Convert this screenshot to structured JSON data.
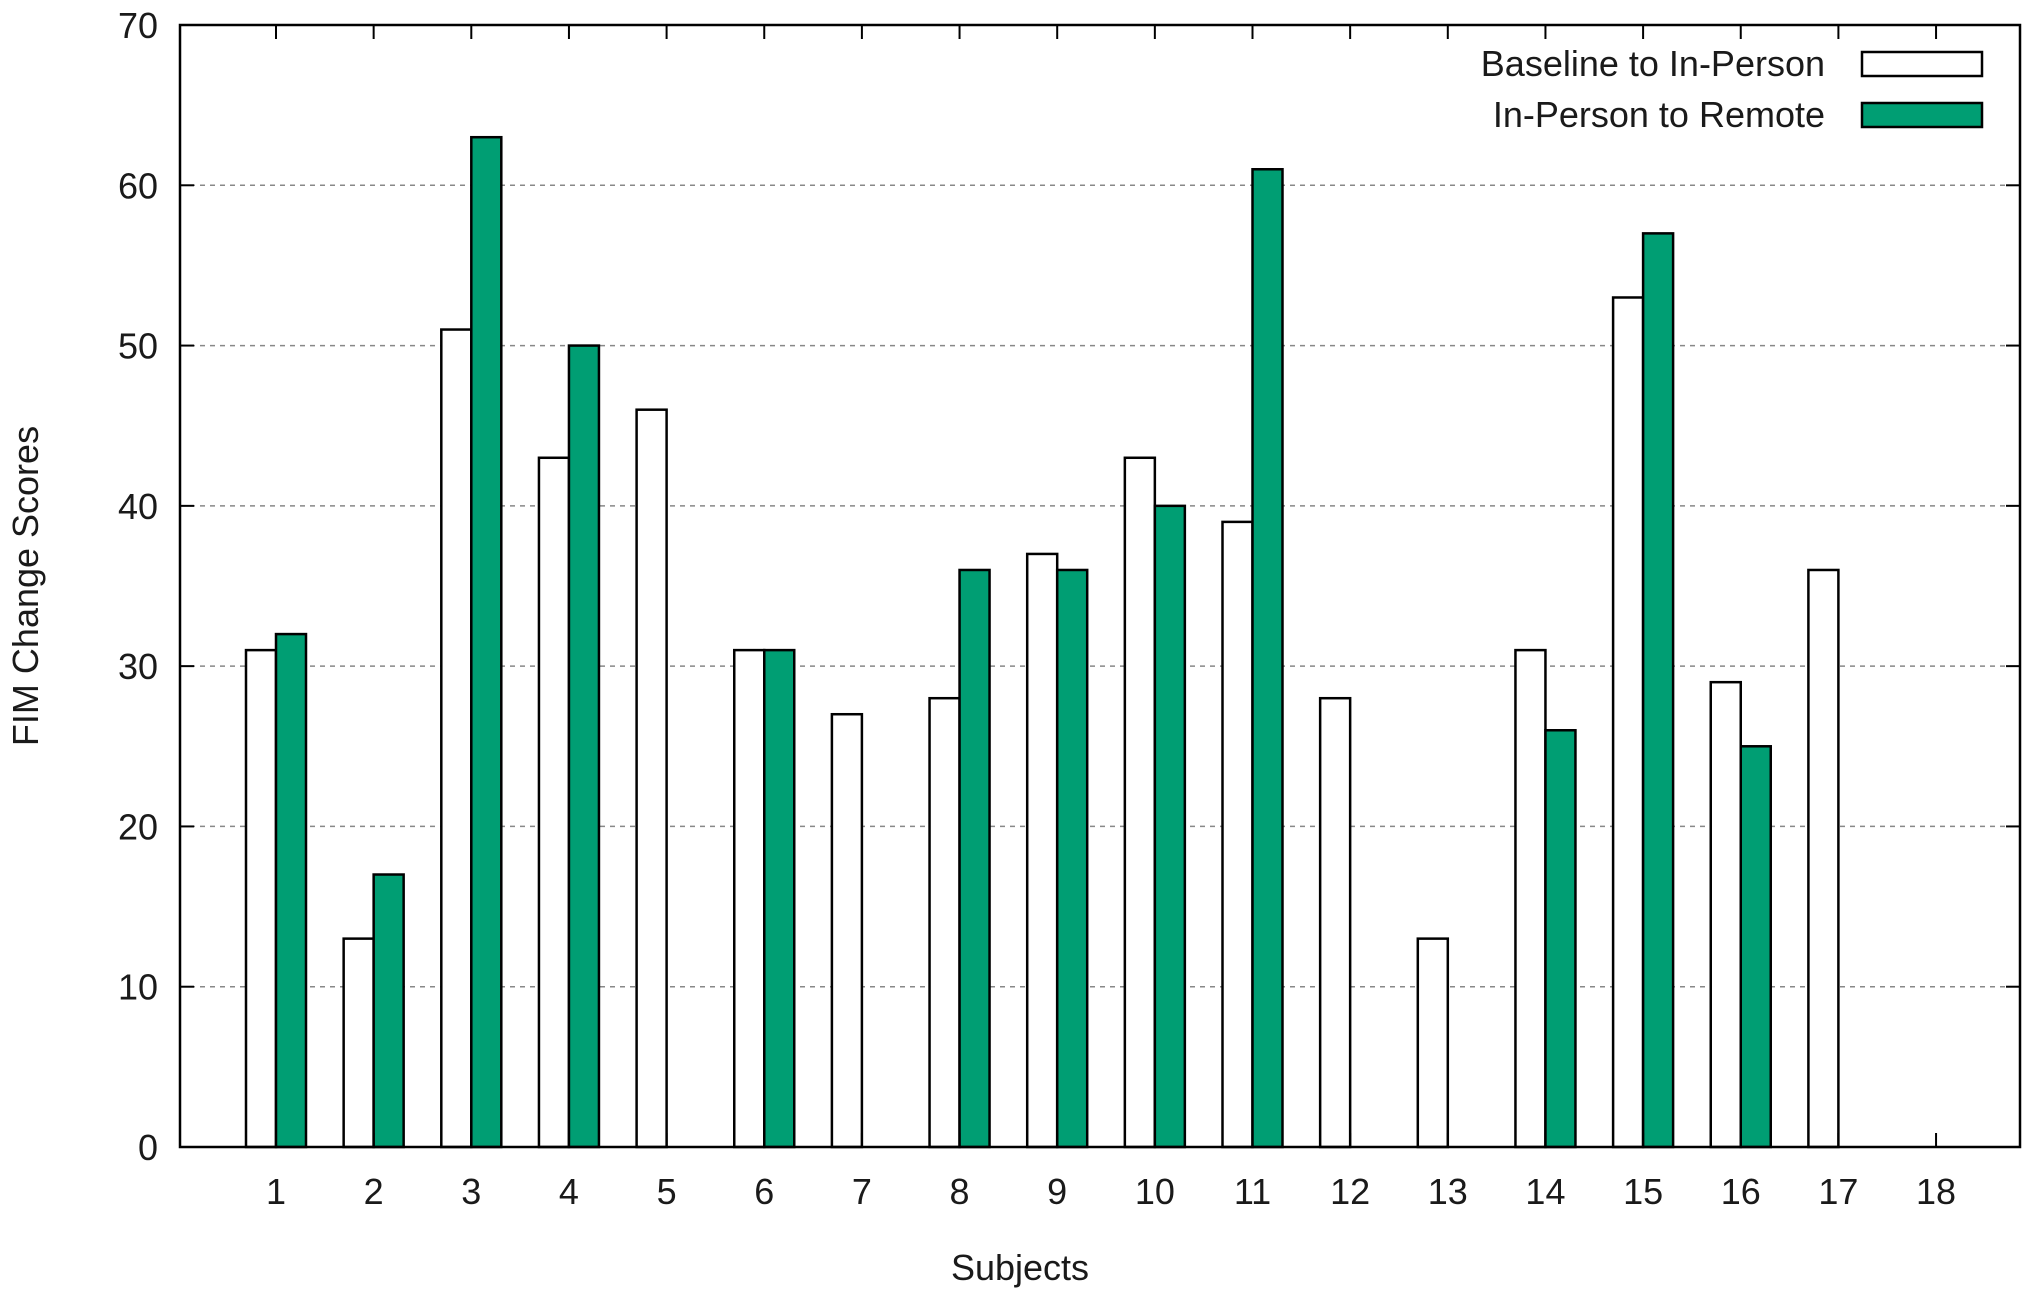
{
  "chart_data": {
    "type": "bar",
    "title": "",
    "xlabel": "Subjects",
    "ylabel": "FIM Change Scores",
    "ylim": [
      0,
      70
    ],
    "yticks": [
      0,
      10,
      20,
      30,
      40,
      50,
      60,
      70
    ],
    "grid": "horizontal dashed",
    "legend_position": "top-right",
    "categories": [
      "1",
      "2",
      "3",
      "4",
      "5",
      "6",
      "7",
      "8",
      "9",
      "10",
      "11",
      "12",
      "13",
      "14",
      "15",
      "16",
      "17",
      "18"
    ],
    "series": [
      {
        "name": "Baseline to In-Person",
        "color": "#ffffff",
        "values": [
          31,
          13,
          51,
          43,
          46,
          31,
          27,
          28,
          37,
          43,
          39,
          28,
          13,
          31,
          53,
          29,
          36,
          0
        ]
      },
      {
        "name": "In-Person to Remote",
        "color": "#009e73",
        "values": [
          32,
          17,
          63,
          50,
          0,
          31,
          0,
          36,
          36,
          40,
          61,
          0,
          0,
          26,
          57,
          25,
          0,
          0
        ]
      }
    ]
  }
}
